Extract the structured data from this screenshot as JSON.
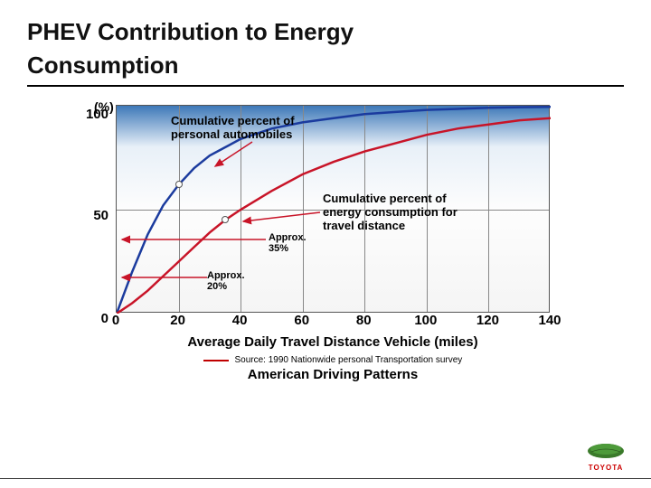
{
  "title_line1": "PHEV Contribution to Energy",
  "title_line2": "Consumption",
  "chart": {
    "type": "line",
    "y_unit": "(%)",
    "y_ticks": [
      0,
      50,
      100
    ],
    "x_ticks": [
      0,
      20,
      40,
      60,
      80,
      100,
      120,
      140
    ],
    "xlim": [
      0,
      140
    ],
    "ylim": [
      0,
      100
    ],
    "x_label": "Average Daily Travel Distance Vehicle (miles)",
    "gradient_top": "#3d78b8",
    "gradient_bottom": "#fdfdfd",
    "grid_color": "#888888",
    "border_color": "#555555",
    "series_autos": {
      "label": "Cumulative percent of\npersonal automobiles",
      "color": "#1b3b9e",
      "line_width": 2.5,
      "points": [
        [
          0,
          0
        ],
        [
          5,
          20
        ],
        [
          10,
          38
        ],
        [
          15,
          52
        ],
        [
          20,
          62
        ],
        [
          25,
          70
        ],
        [
          30,
          76
        ],
        [
          35,
          80
        ],
        [
          40,
          84
        ],
        [
          50,
          89
        ],
        [
          60,
          92
        ],
        [
          70,
          94
        ],
        [
          80,
          96
        ],
        [
          90,
          97
        ],
        [
          100,
          98
        ],
        [
          110,
          98.5
        ],
        [
          120,
          99
        ],
        [
          130,
          99.3
        ],
        [
          140,
          99.5
        ]
      ]
    },
    "series_energy": {
      "label": "Cumulative percent of\nenergy consumption for\ntravel distance",
      "color": "#c81428",
      "line_width": 2.5,
      "points": [
        [
          0,
          0
        ],
        [
          5,
          5
        ],
        [
          10,
          11
        ],
        [
          15,
          18
        ],
        [
          20,
          25
        ],
        [
          25,
          32
        ],
        [
          30,
          39
        ],
        [
          35,
          45
        ],
        [
          40,
          50
        ],
        [
          50,
          59
        ],
        [
          60,
          67
        ],
        [
          70,
          73
        ],
        [
          80,
          78
        ],
        [
          90,
          82
        ],
        [
          100,
          86
        ],
        [
          110,
          89
        ],
        [
          120,
          91
        ],
        [
          130,
          93
        ],
        [
          140,
          94
        ]
      ]
    },
    "callout_20": {
      "text": "Approx.\n20%",
      "x": 20,
      "color": "#c81428"
    },
    "callout_35": {
      "text": "Approx.\n35%",
      "x": 35,
      "color": "#c81428"
    },
    "marker_autos_x": 20,
    "marker_energy_x": 35
  },
  "source_text": "Source: 1990 Nationwide personal Transportation survey",
  "source_line_color": "#c00000",
  "subtitle": "American Driving Patterns",
  "logo_text": "TOYOTA",
  "logo_leaf_color": "#3a7a2a",
  "logo_text_color": "#cc0000"
}
